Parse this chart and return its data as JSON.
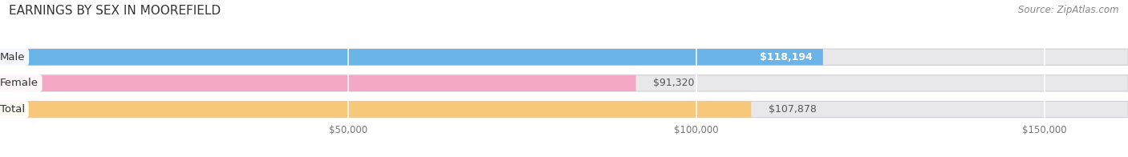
{
  "title": "EARNINGS BY SEX IN MOOREFIELD",
  "source": "Source: ZipAtlas.com",
  "categories": [
    "Male",
    "Female",
    "Total"
  ],
  "values": [
    118194,
    91320,
    107878
  ],
  "bar_colors": [
    "#6ab4e8",
    "#f5a8c5",
    "#f7c87a"
  ],
  "value_labels": [
    "$118,194",
    "$91,320",
    "$107,878"
  ],
  "value_inside": [
    true,
    false,
    false
  ],
  "xlim": [
    0,
    162000
  ],
  "xticks": [
    50000,
    100000,
    150000
  ],
  "xtick_labels": [
    "$50,000",
    "$100,000",
    "$150,000"
  ],
  "bar_height": 0.62,
  "background_color": "#ffffff",
  "bar_bg_color": "#e8e8ea",
  "title_fontsize": 11,
  "label_fontsize": 9.5,
  "value_fontsize": 9,
  "source_fontsize": 8.5,
  "tick_fontsize": 8.5,
  "grid_color": "#cccccc"
}
